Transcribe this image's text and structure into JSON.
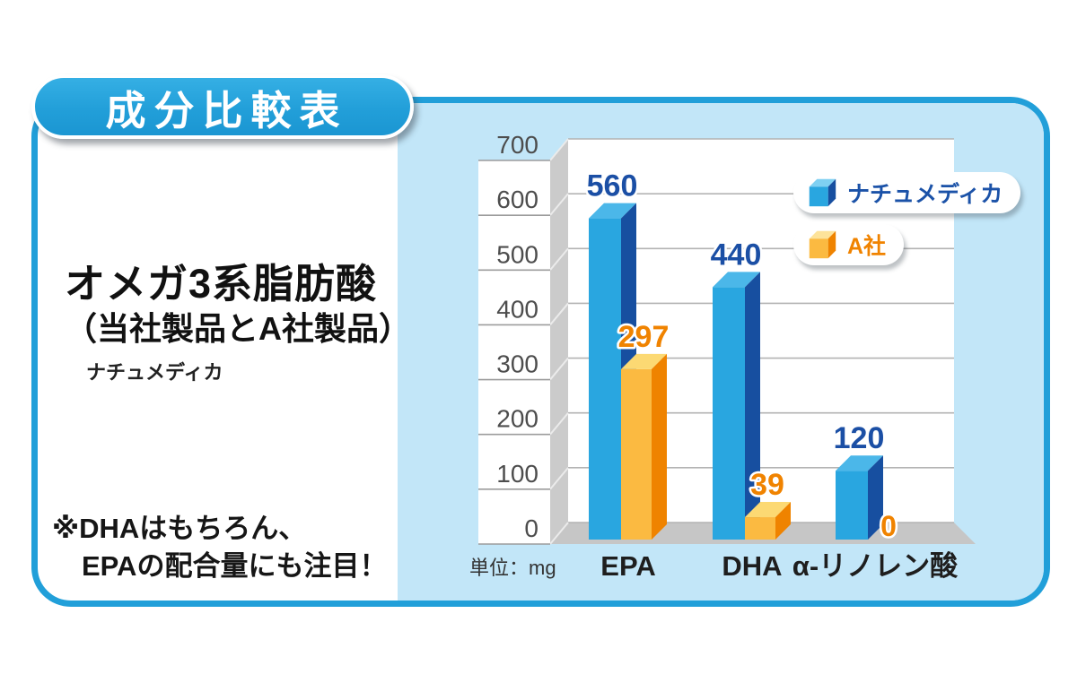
{
  "header": {
    "title": "成分比較表"
  },
  "left": {
    "heading_line1": "オメガ3系脂肪酸",
    "heading_line2": "（当社製品とA社製品）",
    "brand": "ナチュメディカ",
    "note_line1": "※DHAはもちろん、",
    "note_line2": "EPAの配合量にも注目！"
  },
  "colors": {
    "card_border": "#219fd9",
    "panel_background": "#c2e6f8",
    "title_background": "#229fd9",
    "wall_gray": "#cbcbcb",
    "floor_gray": "#c6c6c6",
    "gridline": "#b3b3b3",
    "axis_text": "#4d4d4d"
  },
  "chart_data": {
    "type": "bar",
    "style": "3d",
    "title": "オメガ3系脂肪酸（当社製品とA社製品）",
    "categories": [
      "EPA",
      "DHA",
      "α-リノレン酸"
    ],
    "series": [
      {
        "name": "ナチュメディカ",
        "values": [
          560,
          440,
          120
        ],
        "color": "#29a6e0",
        "top_color": "#4bb7e9",
        "side_color": "#174fa0",
        "label_color": "#1b4fa5"
      },
      {
        "name": "A社",
        "values": [
          297,
          39,
          0
        ],
        "color": "#fbba41",
        "top_color": "#fcd973",
        "side_color": "#ef8300",
        "label_color": "#f08300"
      }
    ],
    "ylim": [
      0,
      700
    ],
    "ytick_step": 100,
    "yticks": [
      0,
      100,
      200,
      300,
      400,
      500,
      600,
      700
    ],
    "xlabel": "",
    "ylabel": "",
    "unit_label": "単位：mg",
    "grid": true,
    "legend_position": "top-right"
  }
}
